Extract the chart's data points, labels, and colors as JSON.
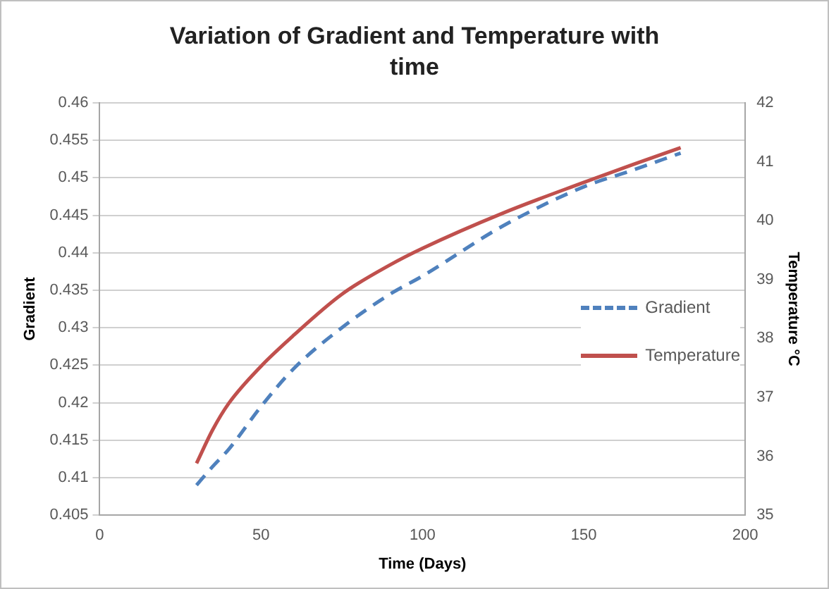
{
  "chart_data": {
    "type": "line",
    "title": "Variation of Gradient and Temperature with time",
    "xlabel": "Time (Days)",
    "ylabel": "Gradient",
    "y2label": "Temperature °C",
    "x": [
      30,
      35,
      40,
      50,
      60,
      75,
      90,
      100,
      125,
      150,
      165,
      180
    ],
    "series": [
      {
        "name": "Gradient",
        "color": "#4f81bd",
        "line_style": "dashed",
        "values": [
          0.409,
          0.4115,
          0.4138,
          0.4195,
          0.4245,
          0.43,
          0.4345,
          0.4369,
          0.4436,
          0.4488,
          0.451,
          0.4533
        ]
      },
      {
        "name": "Temperature",
        "color": "#c0504d",
        "line_style": "solid",
        "axis": "y2",
        "values": [
          35.88,
          36.45,
          36.9,
          37.53,
          38.05,
          38.75,
          39.25,
          39.53,
          40.13,
          40.65,
          40.95,
          41.24
        ]
      }
    ],
    "xlim": [
      0,
      200
    ],
    "xticks": [
      0,
      50,
      100,
      150,
      200
    ],
    "ylim": [
      0.405,
      0.46
    ],
    "yticks": [
      0.405,
      0.41,
      0.415,
      0.42,
      0.425,
      0.43,
      0.435,
      0.44,
      0.445,
      0.45,
      0.455,
      0.46
    ],
    "y2lim": [
      35,
      42
    ],
    "y2ticks": [
      35,
      36,
      37,
      38,
      39,
      40,
      41,
      42
    ],
    "grid": "y",
    "legend": "right",
    "marker": "none"
  }
}
